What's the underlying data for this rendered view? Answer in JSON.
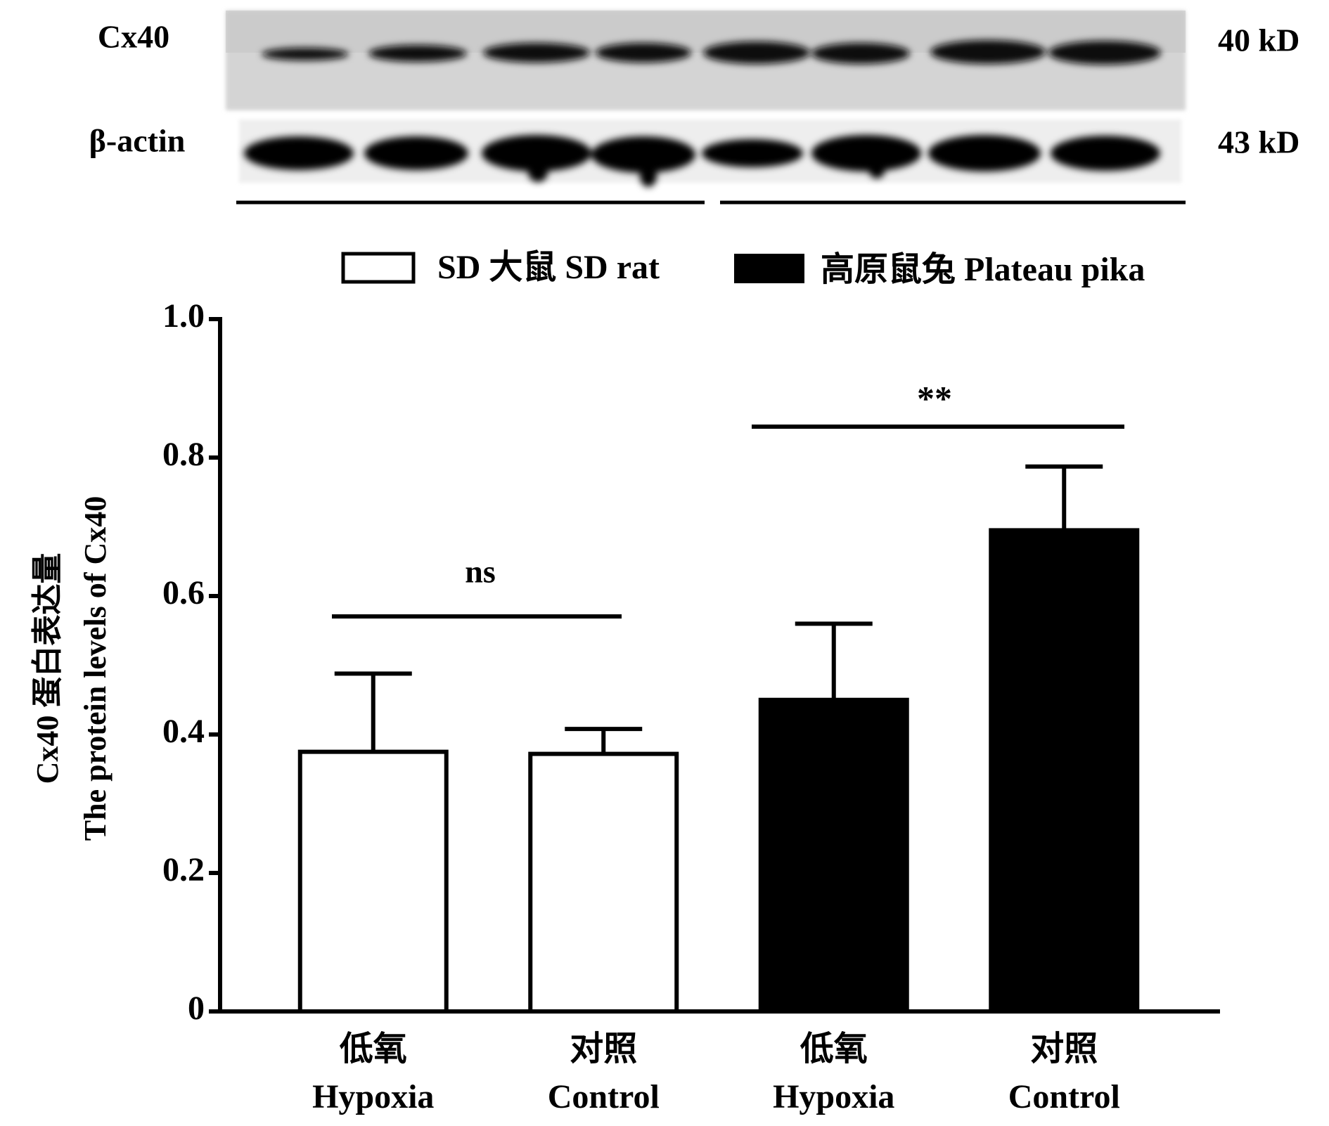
{
  "chart_data": {
    "type": "bar",
    "blot": {
      "rows": [
        "Cx40",
        "β-actin"
      ],
      "sizes": [
        "40 kD",
        "43 kD"
      ]
    },
    "categories": [
      [
        "低氧",
        "Hypoxia"
      ],
      [
        "对照",
        "Control"
      ],
      [
        "低氧",
        "Hypoxia"
      ],
      [
        "对照",
        "Control"
      ]
    ],
    "series": [
      {
        "name": "SD 大鼠 SD rat",
        "color": "#ffffff",
        "values": [
          0.375,
          0.372,
          null,
          null
        ],
        "errors": [
          0.113,
          0.036,
          null,
          null
        ]
      },
      {
        "name": "高原鼠兔 Plateau pika",
        "color": "#000000",
        "values": [
          null,
          null,
          0.45,
          0.695
        ],
        "errors": [
          null,
          null,
          0.11,
          0.092
        ]
      }
    ],
    "ylabel": [
      "Cx40 蛋白表达量",
      "The protein levels of Cx40"
    ],
    "annotations": [
      "ns",
      "**"
    ],
    "ylim": [
      0,
      1
    ],
    "yticks": [
      0,
      0.2,
      0.4,
      0.6,
      0.8,
      {
        "value": 1,
        "label": "1.0"
      }
    ]
  }
}
